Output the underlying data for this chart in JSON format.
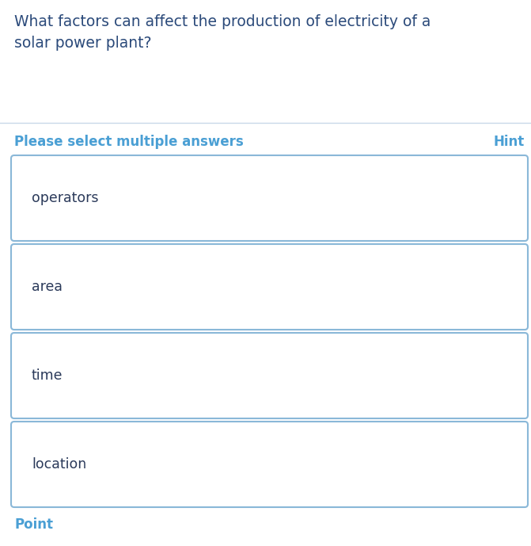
{
  "question": "What factors can affect the production of electricity of a\nsolar power plant?",
  "instruction": "Please select multiple answers",
  "hint": "Hint",
  "options": [
    "operators",
    "area",
    "time",
    "location"
  ],
  "bg_color": "#ffffff",
  "question_color": "#2b4a7a",
  "instruction_color": "#4a9fd4",
  "hint_color": "#4a9fd4",
  "option_text_color": "#2b3a5a",
  "box_border_color": "#8ab8d8",
  "box_bg_color": "#ffffff",
  "separator_color": "#c8d8e8",
  "question_fontsize": 13.5,
  "instruction_fontsize": 12,
  "option_fontsize": 12.5,
  "hint_fontsize": 12,
  "point_text": "Point",
  "point_color": "#4a9fd4",
  "point_fontsize": 12
}
